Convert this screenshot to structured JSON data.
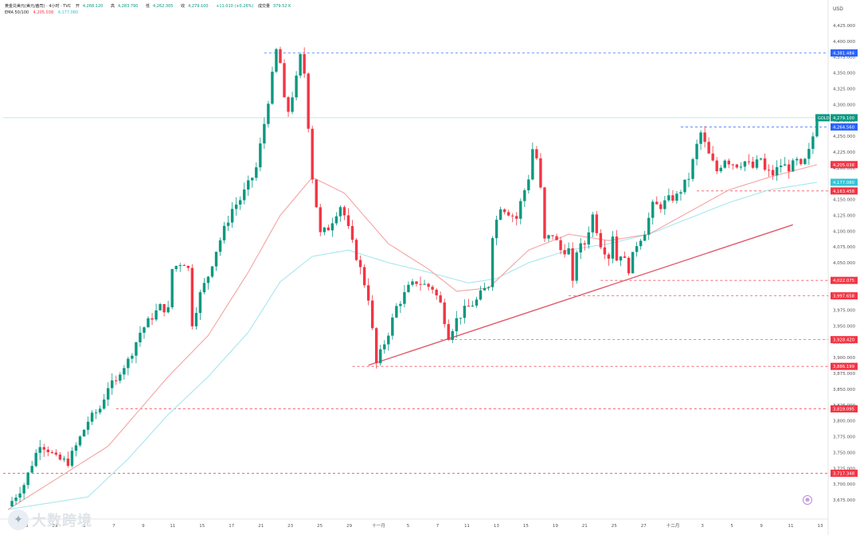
{
  "header": {
    "symbol": "黄金兑美元(美元/盎司) · 4小时 · TVC",
    "open_label": "开",
    "open": "4,268.120",
    "high_label": "高",
    "high": "4,283.790",
    "low_label": "低",
    "low": "4,262.305",
    "close_label": "收",
    "close": "4,279.100",
    "change": "+11.010 (+0.26%)",
    "volume_label": "成交量",
    "volume": "379.52 K",
    "ema_label": "EMA 50/100",
    "ema50": "4,205.038",
    "ema100": "4,177.080"
  },
  "watermark": {
    "logo_icon": "bird-logo-icon",
    "text": "大数跨境"
  },
  "tv_badge": "⊕",
  "colors": {
    "up": "#089981",
    "down": "#f23645",
    "ema50": "#f5a3a3",
    "ema100": "#a8e6ef",
    "trend": "#e05a6a",
    "level_blue": "#2962ff"
  },
  "chart_data": {
    "type": "candlestick",
    "currency": "USD",
    "ylim": [
      3660,
      4440
    ],
    "y_ticks": [
      3675,
      3700,
      3725,
      3750,
      3775,
      3800,
      3825,
      3850,
      3875,
      3900,
      3925,
      3950,
      3975,
      4000,
      4025,
      4050,
      4075,
      4100,
      4125,
      4150,
      4175,
      4200,
      4225,
      4250,
      4275,
      4300,
      4325,
      4350,
      4375,
      4400,
      4425
    ],
    "y_tick_labels": [
      "3,675.000",
      "3,700.000",
      "3,725.000",
      "3,750.000",
      "3,775.000",
      "3,800.000",
      "3,825.000",
      "3,850.000",
      "3,875.000",
      "3,900.000",
      "3,925.000",
      "3,950.000",
      "3,975.000",
      "4,000.000",
      "4,025.000",
      "4,050.000",
      "4,075.000",
      "4,100.000",
      "4,125.000",
      "4,150.000",
      "4,175.000",
      "4,200.000",
      "4,225.000",
      "4,250.000",
      "4,275.000",
      "4,300.000",
      "4,325.000",
      "4,350.000",
      "4,375.000",
      "4,400.000",
      "4,425.000"
    ],
    "x_ticks": [
      "23",
      "29",
      "3",
      "7",
      "9",
      "11",
      "15",
      "17",
      "21",
      "23",
      "25",
      "29",
      "十一月",
      "5",
      "7",
      "11",
      "13",
      "15",
      "19",
      "21",
      "25",
      "27",
      "十二月",
      "3",
      "5",
      "9",
      "11",
      "13"
    ],
    "price_path": [
      [
        0,
        3665
      ],
      [
        4,
        3700
      ],
      [
        8,
        3765
      ],
      [
        10,
        3755
      ],
      [
        12,
        3740
      ],
      [
        15,
        3735
      ],
      [
        17,
        3760
      ],
      [
        20,
        3800
      ],
      [
        23,
        3820
      ],
      [
        25,
        3855
      ],
      [
        27,
        3860
      ],
      [
        28,
        3880
      ],
      [
        30,
        3895
      ],
      [
        33,
        3940
      ],
      [
        36,
        3965
      ],
      [
        38,
        3980
      ],
      [
        40,
        3975
      ],
      [
        41,
        4040
      ],
      [
        43,
        4050
      ],
      [
        44,
        4050
      ],
      [
        45,
        4040
      ],
      [
        46,
        3955
      ],
      [
        48,
        4000
      ],
      [
        50,
        4030
      ],
      [
        52,
        4070
      ],
      [
        56,
        4135
      ],
      [
        58,
        4150
      ],
      [
        61,
        4185
      ],
      [
        62,
        4200
      ],
      [
        64,
        4270
      ],
      [
        66,
        4345
      ],
      [
        67,
        4385
      ],
      [
        68,
        4365
      ],
      [
        69,
        4305
      ],
      [
        70,
        4290
      ],
      [
        72,
        4340
      ],
      [
        73,
        4375
      ],
      [
        74,
        4350
      ],
      [
        76,
        4185
      ],
      [
        78,
        4095
      ],
      [
        80,
        4105
      ],
      [
        82,
        4130
      ],
      [
        83,
        4140
      ],
      [
        84,
        4125
      ],
      [
        86,
        4080
      ],
      [
        88,
        4040
      ],
      [
        90,
        3995
      ],
      [
        92,
        3890
      ],
      [
        95,
        3940
      ],
      [
        97,
        3980
      ],
      [
        100,
        4010
      ],
      [
        102,
        4020
      ],
      [
        104,
        4015
      ],
      [
        106,
        4010
      ],
      [
        108,
        3985
      ],
      [
        110,
        3935
      ],
      [
        112,
        3960
      ],
      [
        114,
        3975
      ],
      [
        117,
        3990
      ],
      [
        118,
        4000
      ],
      [
        120,
        4015
      ],
      [
        121,
        4095
      ],
      [
        123,
        4140
      ],
      [
        125,
        4130
      ],
      [
        127,
        4120
      ],
      [
        128,
        4145
      ],
      [
        130,
        4185
      ],
      [
        131,
        4230
      ],
      [
        132,
        4215
      ],
      [
        133,
        4165
      ],
      [
        134,
        4085
      ],
      [
        136,
        4095
      ],
      [
        138,
        4070
      ],
      [
        140,
        4070
      ],
      [
        141,
        4015
      ],
      [
        142,
        4070
      ],
      [
        144,
        4080
      ],
      [
        146,
        4125
      ],
      [
        148,
        4080
      ],
      [
        150,
        4060
      ],
      [
        151,
        4095
      ],
      [
        152,
        4055
      ],
      [
        153,
        4065
      ],
      [
        155,
        4040
      ],
      [
        157,
        4080
      ],
      [
        159,
        4100
      ],
      [
        161,
        4140
      ],
      [
        163,
        4140
      ],
      [
        165,
        4150
      ],
      [
        167,
        4155
      ],
      [
        170,
        4185
      ],
      [
        172,
        4235
      ],
      [
        173,
        4255
      ],
      [
        175,
        4220
      ],
      [
        177,
        4195
      ],
      [
        179,
        4215
      ],
      [
        180,
        4210
      ],
      [
        182,
        4205
      ],
      [
        184,
        4210
      ],
      [
        186,
        4200
      ],
      [
        188,
        4215
      ],
      [
        189,
        4195
      ],
      [
        191,
        4190
      ],
      [
        193,
        4205
      ],
      [
        195,
        4200
      ],
      [
        197,
        4210
      ],
      [
        198,
        4200
      ],
      [
        199,
        4210
      ],
      [
        200,
        4225
      ],
      [
        201,
        4250
      ],
      [
        202,
        4279
      ]
    ],
    "ema50_path": [
      [
        0,
        3660
      ],
      [
        25,
        3760
      ],
      [
        40,
        3870
      ],
      [
        50,
        3935
      ],
      [
        60,
        4035
      ],
      [
        68,
        4125
      ],
      [
        76,
        4185
      ],
      [
        84,
        4160
      ],
      [
        95,
        4080
      ],
      [
        105,
        4040
      ],
      [
        112,
        4005
      ],
      [
        120,
        4010
      ],
      [
        130,
        4070
      ],
      [
        140,
        4095
      ],
      [
        150,
        4085
      ],
      [
        160,
        4095
      ],
      [
        170,
        4130
      ],
      [
        180,
        4165
      ],
      [
        190,
        4185
      ],
      [
        202,
        4205
      ]
    ],
    "ema100_path": [
      [
        0,
        3660
      ],
      [
        20,
        3680
      ],
      [
        30,
        3740
      ],
      [
        40,
        3810
      ],
      [
        50,
        3870
      ],
      [
        60,
        3940
      ],
      [
        68,
        4020
      ],
      [
        76,
        4060
      ],
      [
        85,
        4070
      ],
      [
        95,
        4050
      ],
      [
        105,
        4035
      ],
      [
        115,
        4018
      ],
      [
        122,
        4025
      ],
      [
        130,
        4050
      ],
      [
        140,
        4070
      ],
      [
        150,
        4080
      ],
      [
        160,
        4095
      ],
      [
        170,
        4120
      ],
      [
        180,
        4145
      ],
      [
        190,
        4165
      ],
      [
        202,
        4177
      ]
    ],
    "trendline": [
      [
        90,
        3888
      ],
      [
        196,
        4110
      ]
    ],
    "levels": [
      {
        "price": 4381.484,
        "label": "4,381.484",
        "color": "blue",
        "start": 64
      },
      {
        "price": 4279.1,
        "label": "4,279.100",
        "color": "last",
        "tag": "GOLD",
        "start": 0
      },
      {
        "price": 4264.56,
        "label": "4,264.560",
        "color": "blue",
        "start": 168
      },
      {
        "price": 4205.038,
        "label": "4,205.038",
        "color": "ema50",
        "start": -1
      },
      {
        "price": 4177.08,
        "label": "4,177.080",
        "color": "ema100",
        "start": -1
      },
      {
        "price": 4163.458,
        "label": "4,163.458",
        "color": "red",
        "start": 172
      },
      {
        "price": 4022.075,
        "label": "4,022.075",
        "color": "red",
        "start": 148
      },
      {
        "price": 3997.658,
        "label": "3,997.658",
        "color": "red",
        "start": 140
      },
      {
        "price": 3928.42,
        "label": "3,928.420",
        "color": "red",
        "start": 108
      },
      {
        "price": 3886.199,
        "label": "3,886.199",
        "color": "red",
        "start": 86
      },
      {
        "price": 3819.095,
        "label": "3,819.095",
        "color": "red",
        "start": 27
      },
      {
        "price": 3717.348,
        "label": "3,717.348",
        "color": "red",
        "start": 0
      }
    ]
  }
}
